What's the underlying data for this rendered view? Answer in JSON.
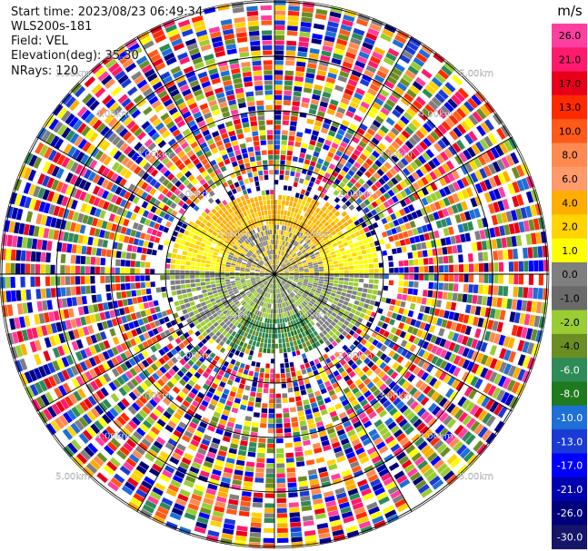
{
  "header": {
    "start_time": "Start time: 2023/08/23 06:49:34",
    "instrument": "WLS200s-181",
    "field": "Field: VEL",
    "elevation": "Elevation(deg): 35.30",
    "nrays": "NRays: 120"
  },
  "colorbar": {
    "unit": "m/s",
    "ticks": [
      "26.0",
      "21.0",
      "17.0",
      "13.0",
      "10.0",
      "8.0",
      "6.0",
      "4.0",
      "2.0",
      "1.0",
      "0.0",
      "-1.0",
      "-2.0",
      "-4.0",
      "-6.0",
      "-8.0",
      "-10.0",
      "-13.0",
      "-17.0",
      "-21.0",
      "-26.0",
      "-30.0"
    ],
    "colors": [
      "#ff3ea0",
      "#ff1a6e",
      "#e8001a",
      "#ff2a00",
      "#ff5a1a",
      "#ff8a50",
      "#ff9a6a",
      "#ffae00",
      "#ffd400",
      "#ffff00",
      "#7f7f7f",
      "#6a6a6a",
      "#9acd32",
      "#6b8e23",
      "#2e8b57",
      "#1f7a1f",
      "#1e6fd6",
      "#1a3ad6",
      "#0000ff",
      "#0000b0",
      "#00007a",
      "#15156a"
    ]
  },
  "range_rings": {
    "labels": [
      "1.00km",
      "2.00km",
      "3.00km",
      "4.00km",
      "5.00km"
    ]
  }
}
